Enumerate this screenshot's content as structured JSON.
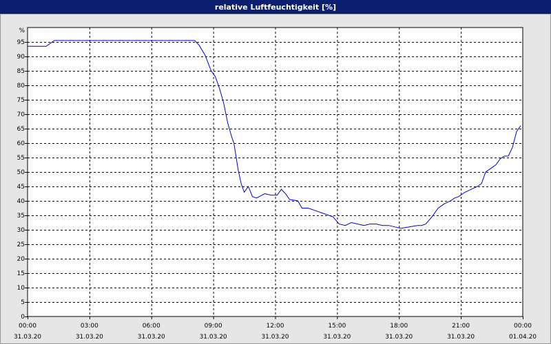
{
  "window": {
    "title": "relative Luftfeuchtigkeit [%]"
  },
  "colors": {
    "titlebar": "#0b1f6e",
    "background": "#e6e6e6",
    "plot_background": "#ffffff",
    "line": "#0000cc",
    "grid": "#000000"
  },
  "chart_data": {
    "type": "line",
    "title": "relative Luftfeuchtigkeit [%]",
    "ylabel": "%",
    "ylim": [
      0,
      100
    ],
    "yticks": [
      0,
      5,
      10,
      15,
      20,
      25,
      30,
      35,
      40,
      45,
      50,
      55,
      60,
      65,
      70,
      75,
      80,
      85,
      90,
      95
    ],
    "xlim_hours": [
      0,
      24
    ],
    "xticks": [
      {
        "h": 0,
        "time": "00:00",
        "date": "31.03.20"
      },
      {
        "h": 3,
        "time": "03:00",
        "date": "31.03.20"
      },
      {
        "h": 6,
        "time": "06:00",
        "date": "31.03.20"
      },
      {
        "h": 9,
        "time": "09:00",
        "date": "31.03.20"
      },
      {
        "h": 12,
        "time": "12:00",
        "date": "31.03.20"
      },
      {
        "h": 15,
        "time": "15:00",
        "date": "31.03.20"
      },
      {
        "h": 18,
        "time": "18:00",
        "date": "31.03.20"
      },
      {
        "h": 21,
        "time": "21:00",
        "date": "31.03.20"
      },
      {
        "h": 24,
        "time": "00:00",
        "date": "01.04.20"
      }
    ],
    "grid": true,
    "series": [
      {
        "x": [
          0,
          0.9,
          1.3,
          2,
          4,
          6,
          8.1,
          8.3,
          8.6,
          8.9,
          9.1,
          9.3,
          9.5,
          9.7,
          9.9,
          10.0,
          10.2,
          10.35,
          10.5,
          10.7,
          10.9,
          11.1,
          11.5,
          11.8,
          12.1,
          12.3,
          12.5,
          12.7,
          13.1,
          13.3,
          13.6,
          14.0,
          14.4,
          14.8,
          15.1,
          15.4,
          15.7,
          16.0,
          16.3,
          16.6,
          16.9,
          17.2,
          17.5,
          17.8,
          18.1,
          18.5,
          18.9,
          19.1,
          19.3,
          19.6,
          19.9,
          20.2,
          20.5,
          20.7,
          20.9,
          21.2,
          21.5,
          21.8,
          22.0,
          22.2,
          22.4,
          22.7,
          22.9,
          23.1,
          23.3,
          23.5,
          23.7,
          23.9
        ],
        "y": [
          93.5,
          93.5,
          95.5,
          95.5,
          95.5,
          95.5,
          95.5,
          94,
          90.5,
          85,
          83,
          79,
          74,
          67,
          62,
          60,
          51,
          46,
          43,
          45,
          41.5,
          41,
          42.5,
          42,
          42,
          44,
          42.5,
          40.5,
          40,
          37.5,
          37.5,
          36.5,
          35.5,
          34.5,
          32,
          31.5,
          32.5,
          32,
          31.5,
          32,
          32,
          31.5,
          31.5,
          31,
          30.5,
          31,
          31.5,
          31.5,
          32,
          34.5,
          37.5,
          39,
          40,
          41,
          41.5,
          43,
          44,
          45,
          46,
          50,
          51,
          52.5,
          54.5,
          55.5,
          55.5,
          58.5,
          64,
          66
        ]
      }
    ]
  }
}
